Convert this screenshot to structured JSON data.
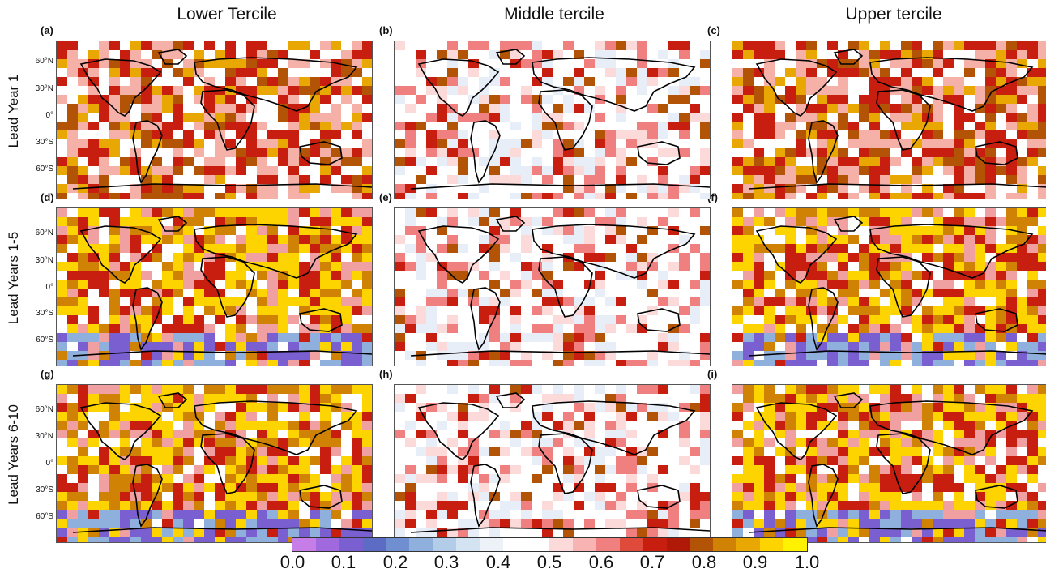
{
  "columns": [
    "Lower Tercile",
    "Middle tercile",
    "Upper tercile"
  ],
  "rows": [
    "Lead Year 1",
    "Lead Years 1-5",
    "Lead Years 6-10"
  ],
  "panels": [
    "(a)",
    "(b)",
    "(c)",
    "(d)",
    "(e)",
    "(f)",
    "(g)",
    "(h)",
    "(i)"
  ],
  "lat_labels": [
    "60°N",
    "30°N",
    "0°",
    "30°S",
    "60°S"
  ],
  "colorbar": {
    "ticks": [
      "0.0",
      "0.1",
      "0.2",
      "0.3",
      "0.4",
      "0.5",
      "0.6",
      "0.7",
      "0.8",
      "0.9",
      "1.0"
    ],
    "colors": [
      "#c77de8",
      "#a169de",
      "#7a5fd0",
      "#5c6cc4",
      "#6f8fd0",
      "#8fb0dc",
      "#b3cde8",
      "#d3e3f2",
      "#edf2f8",
      "#ffffff",
      "#ffffff",
      "#fcdada",
      "#f8b3b3",
      "#f08080",
      "#e04a3a",
      "#c81e10",
      "#b01807",
      "#b35306",
      "#cf8204",
      "#e9a703",
      "#fdd400",
      "#fff200"
    ]
  },
  "map_data": {
    "value_range": [
      0,
      1
    ],
    "panels": [
      {
        "id": "(a)",
        "column": "Lower Tercile",
        "row": "Lead Year 1",
        "dominant_skill": "0.7-0.9"
      },
      {
        "id": "(b)",
        "column": "Middle tercile",
        "row": "Lead Year 1",
        "dominant_skill": "0.4-0.6"
      },
      {
        "id": "(c)",
        "column": "Upper tercile",
        "row": "Lead Year 1",
        "dominant_skill": "0.7-0.9"
      },
      {
        "id": "(d)",
        "column": "Lower Tercile",
        "row": "Lead Years 1-5",
        "dominant_skill": "0.8-1.0"
      },
      {
        "id": "(e)",
        "column": "Middle tercile",
        "row": "Lead Years 1-5",
        "dominant_skill": "0.5-0.8"
      },
      {
        "id": "(f)",
        "column": "Upper tercile",
        "row": "Lead Years 1-5",
        "dominant_skill": "0.9-1.0"
      },
      {
        "id": "(g)",
        "column": "Lower Tercile",
        "row": "Lead Years 6-10",
        "dominant_skill": "0.8-1.0"
      },
      {
        "id": "(h)",
        "column": "Middle tercile",
        "row": "Lead Years 6-10",
        "dominant_skill": "0.5-0.8"
      },
      {
        "id": "(i)",
        "column": "Upper tercile",
        "row": "Lead Years 6-10",
        "dominant_skill": "0.9-1.0"
      }
    ]
  }
}
